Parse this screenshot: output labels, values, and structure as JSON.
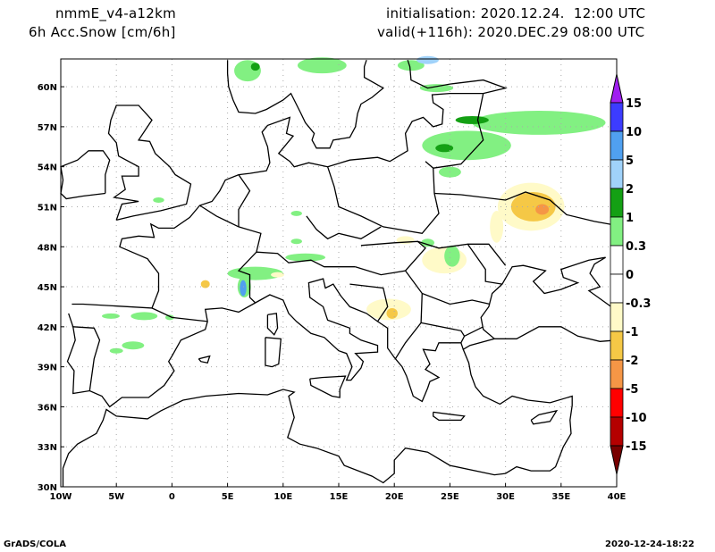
{
  "header": {
    "model": "nmmE_v4-a12km",
    "variable": "6h Acc.Snow [cm/6h]",
    "initialisation": "initialisation: 2020.12.24.  12:00 UTC",
    "valid": "valid(+116h): 2020.DEC.29 08:00 UTC"
  },
  "axes": {
    "lat_labels": [
      "60N",
      "57N",
      "54N",
      "51N",
      "48N",
      "45N",
      "42N",
      "39N",
      "36N",
      "33N",
      "30N"
    ],
    "lon_labels": [
      "10W",
      "5W",
      "0",
      "5E",
      "10E",
      "15E",
      "20E",
      "25E",
      "30E",
      "35E",
      "40E"
    ]
  },
  "colorbar": {
    "labels": [
      "15",
      "10",
      "5",
      "2",
      "1",
      "0.3",
      "0",
      "-0.3",
      "-1",
      "-2",
      "-5",
      "-10",
      "-15"
    ],
    "colors": [
      "#a020f0",
      "#3c3cff",
      "#50a0f0",
      "#a0d2fa",
      "#14a014",
      "#82f082",
      "#ffffff",
      "#ffffff",
      "#fffac8",
      "#f5c846",
      "#f59646",
      "#ff0000",
      "#b40000",
      "#780000"
    ]
  },
  "footer": {
    "left": "GrADS/COLA",
    "right": "2020-12-24-18:22"
  }
}
